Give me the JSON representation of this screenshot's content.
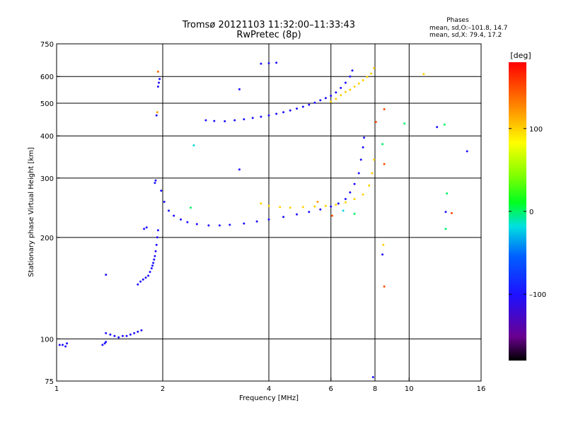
{
  "header": {
    "title_line1": "Tromsø 20121103 11:32:00–11:33:43",
    "title_line2": "RwPretec (8p)",
    "phases_title": "Phases",
    "phases_o": "mean, sd,O:–101.8, 14.7",
    "phases_x": "mean, sd,X:  79.4, 17.2"
  },
  "colorbar": {
    "unit_label": "[deg]",
    "range": [
      -180,
      180
    ],
    "ticks": [
      {
        "value": 100,
        "label": "100"
      },
      {
        "value": 0,
        "label": "0"
      },
      {
        "value": -100,
        "label": "–100"
      }
    ]
  },
  "chart_data": {
    "type": "scatter",
    "xlabel": "Frequency [MHz]",
    "ylabel": "Stationary phase Virtual Height [km]",
    "xscale": "log",
    "yscale": "log",
    "xlim": [
      1,
      16
    ],
    "ylim": [
      75,
      750
    ],
    "x_ticks": [
      {
        "value": 1,
        "label": "1"
      },
      {
        "value": 2,
        "label": "2"
      },
      {
        "value": 4,
        "label": "4"
      },
      {
        "value": 6,
        "label": "6"
      },
      {
        "value": 8,
        "label": "8"
      },
      {
        "value": 10,
        "label": "10"
      },
      {
        "value": 16,
        "label": "16"
      }
    ],
    "y_ticks": [
      {
        "value": 75,
        "label": "75"
      },
      {
        "value": 100,
        "label": "100"
      },
      {
        "value": 200,
        "label": "200"
      },
      {
        "value": 300,
        "label": "300"
      },
      {
        "value": 400,
        "label": "400"
      },
      {
        "value": 500,
        "label": "500"
      },
      {
        "value": 600,
        "label": "600"
      },
      {
        "value": 750,
        "label": "750"
      }
    ],
    "grid": true,
    "grid_x": [
      2,
      4,
      6,
      8,
      10
    ],
    "grid_y": [
      100,
      200,
      300,
      400,
      500,
      600
    ],
    "series": [
      {
        "color_by": "phase",
        "points": [
          [
            1.02,
            96,
            -100
          ],
          [
            1.04,
            96,
            -100
          ],
          [
            1.06,
            95,
            -100
          ],
          [
            1.07,
            97,
            -100
          ],
          [
            1.35,
            96,
            -100
          ],
          [
            1.37,
            97,
            -100
          ],
          [
            1.38,
            98,
            -100
          ],
          [
            1.38,
            104,
            -100
          ],
          [
            1.42,
            103,
            -100
          ],
          [
            1.46,
            102,
            -100
          ],
          [
            1.5,
            101,
            -100
          ],
          [
            1.54,
            102,
            -100
          ],
          [
            1.58,
            102,
            -100
          ],
          [
            1.62,
            103,
            -100
          ],
          [
            1.66,
            104,
            -100
          ],
          [
            1.7,
            105,
            -100
          ],
          [
            1.74,
            106,
            -100
          ],
          [
            1.38,
            155,
            -100
          ],
          [
            1.7,
            145,
            -100
          ],
          [
            1.73,
            148,
            -100
          ],
          [
            1.76,
            150,
            -100
          ],
          [
            1.79,
            152,
            -100
          ],
          [
            1.82,
            154,
            -100
          ],
          [
            1.84,
            158,
            -100
          ],
          [
            1.86,
            162,
            -100
          ],
          [
            1.87,
            165,
            -100
          ],
          [
            1.88,
            168,
            -100
          ],
          [
            1.89,
            172,
            -100
          ],
          [
            1.9,
            176,
            -100
          ],
          [
            1.91,
            182,
            -100
          ],
          [
            1.92,
            190,
            -100
          ],
          [
            1.93,
            200,
            -100
          ],
          [
            1.94,
            210,
            -100
          ],
          [
            1.77,
            212,
            -100
          ],
          [
            1.8,
            214,
            -100
          ],
          [
            1.9,
            290,
            -100
          ],
          [
            1.91,
            295,
            -100
          ],
          [
            1.92,
            460,
            -110
          ],
          [
            1.93,
            470,
            120
          ],
          [
            1.94,
            560,
            -100
          ],
          [
            1.95,
            575,
            -100
          ],
          [
            1.96,
            590,
            -100
          ],
          [
            1.94,
            620,
            140
          ],
          [
            1.98,
            275,
            -100
          ],
          [
            2.02,
            255,
            -100
          ],
          [
            2.08,
            240,
            -100
          ],
          [
            2.15,
            232,
            -100
          ],
          [
            2.25,
            226,
            -100
          ],
          [
            2.35,
            222,
            -100
          ],
          [
            2.5,
            219,
            -100
          ],
          [
            2.7,
            217,
            -100
          ],
          [
            2.9,
            217,
            -100
          ],
          [
            3.1,
            218,
            -100
          ],
          [
            3.4,
            220,
            -100
          ],
          [
            3.7,
            223,
            -100
          ],
          [
            4.0,
            226,
            -100
          ],
          [
            4.4,
            230,
            -100
          ],
          [
            4.8,
            234,
            -100
          ],
          [
            5.2,
            238,
            -100
          ],
          [
            5.6,
            242,
            -100
          ],
          [
            6.0,
            247,
            -100
          ],
          [
            6.3,
            252,
            -100
          ],
          [
            6.6,
            260,
            -100
          ],
          [
            6.8,
            272,
            -100
          ],
          [
            7.0,
            288,
            -100
          ],
          [
            7.2,
            310,
            -100
          ],
          [
            7.3,
            340,
            -100
          ],
          [
            7.4,
            370,
            -100
          ],
          [
            7.45,
            395,
            -100
          ],
          [
            3.8,
            252,
            100
          ],
          [
            4.0,
            248,
            100
          ],
          [
            4.3,
            246,
            100
          ],
          [
            4.6,
            245,
            100
          ],
          [
            5.0,
            246,
            100
          ],
          [
            5.4,
            247,
            100
          ],
          [
            5.8,
            248,
            100
          ],
          [
            6.2,
            250,
            100
          ],
          [
            6.6,
            254,
            100
          ],
          [
            7.0,
            260,
            100
          ],
          [
            7.4,
            268,
            100
          ],
          [
            7.7,
            285,
            100
          ],
          [
            7.85,
            310,
            100
          ],
          [
            7.95,
            340,
            100
          ],
          [
            2.65,
            445,
            -100
          ],
          [
            2.8,
            443,
            -100
          ],
          [
            3.0,
            442,
            -100
          ],
          [
            3.2,
            445,
            -100
          ],
          [
            3.4,
            448,
            -100
          ],
          [
            3.6,
            452,
            -100
          ],
          [
            3.8,
            456,
            -100
          ],
          [
            4.0,
            460,
            -100
          ],
          [
            4.2,
            465,
            -100
          ],
          [
            4.4,
            470,
            -100
          ],
          [
            4.6,
            476,
            -100
          ],
          [
            4.8,
            482,
            -100
          ],
          [
            5.0,
            488,
            -100
          ],
          [
            5.2,
            495,
            -100
          ],
          [
            5.4,
            502,
            -100
          ],
          [
            5.6,
            510,
            -100
          ],
          [
            5.8,
            518,
            -100
          ],
          [
            6.0,
            526,
            -100
          ],
          [
            6.2,
            538,
            -100
          ],
          [
            6.4,
            555,
            -100
          ],
          [
            6.6,
            575,
            -100
          ],
          [
            6.8,
            600,
            -100
          ],
          [
            6.9,
            625,
            -100
          ],
          [
            6.0,
            505,
            100
          ],
          [
            6.2,
            515,
            100
          ],
          [
            6.4,
            528,
            100
          ],
          [
            6.6,
            540,
            100
          ],
          [
            6.8,
            548,
            100
          ],
          [
            7.0,
            560,
            100
          ],
          [
            7.2,
            572,
            100
          ],
          [
            7.4,
            585,
            100
          ],
          [
            7.6,
            598,
            100
          ],
          [
            7.8,
            612,
            100
          ],
          [
            7.95,
            635,
            100
          ],
          [
            3.8,
            655,
            -100
          ],
          [
            4.0,
            657,
            -100
          ],
          [
            4.2,
            659,
            -100
          ],
          [
            2.45,
            375,
            -20
          ],
          [
            3.3,
            318,
            -100
          ],
          [
            3.3,
            550,
            -100
          ],
          [
            2.4,
            245,
            0
          ],
          [
            6.05,
            232,
            150
          ],
          [
            5.5,
            255,
            120
          ],
          [
            6.5,
            240,
            -20
          ],
          [
            7.0,
            235,
            0
          ],
          [
            8.05,
            440,
            150
          ],
          [
            8.4,
            378,
            0
          ],
          [
            8.5,
            330,
            150
          ],
          [
            8.45,
            190,
            100
          ],
          [
            8.4,
            178,
            -100
          ],
          [
            8.5,
            143,
            150
          ],
          [
            8.5,
            480,
            150
          ],
          [
            9.7,
            435,
            0
          ],
          [
            11.0,
            610,
            100
          ],
          [
            12.0,
            425,
            -100
          ],
          [
            12.6,
            432,
            0
          ],
          [
            12.8,
            270,
            0
          ],
          [
            12.7,
            238,
            -100
          ],
          [
            13.2,
            236,
            150
          ],
          [
            12.7,
            212,
            0
          ],
          [
            14.6,
            360,
            -100
          ],
          [
            7.9,
            77,
            -100
          ]
        ]
      }
    ]
  }
}
